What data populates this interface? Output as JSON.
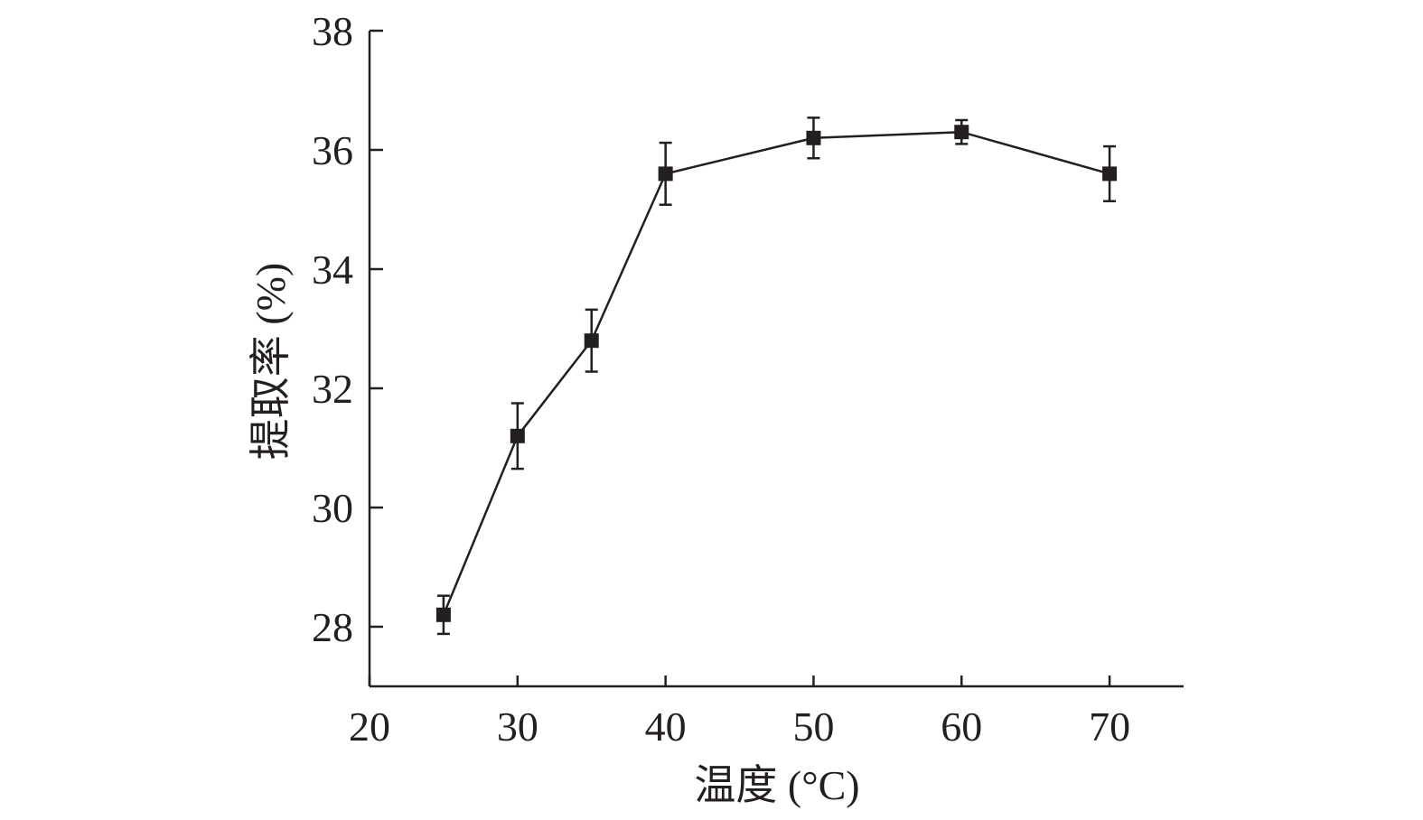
{
  "chart_data": {
    "type": "line",
    "title": "",
    "xlabel": "温度 (°C)",
    "ylabel": "提取率 (%)",
    "xlim": [
      20,
      75
    ],
    "ylim": [
      27,
      38
    ],
    "xticks": [
      20,
      30,
      40,
      50,
      60,
      70
    ],
    "yticks": [
      28,
      30,
      32,
      34,
      36,
      38
    ],
    "grid": false,
    "series": [
      {
        "name": "提取率",
        "marker": "square",
        "color": "#231f20",
        "x": [
          25,
          30,
          35,
          40,
          50,
          60,
          70
        ],
        "y": [
          28.2,
          31.2,
          32.8,
          35.6,
          36.2,
          36.3,
          35.6
        ],
        "yerr": [
          0.32,
          0.55,
          0.52,
          0.52,
          0.34,
          0.2,
          0.46
        ]
      }
    ]
  }
}
